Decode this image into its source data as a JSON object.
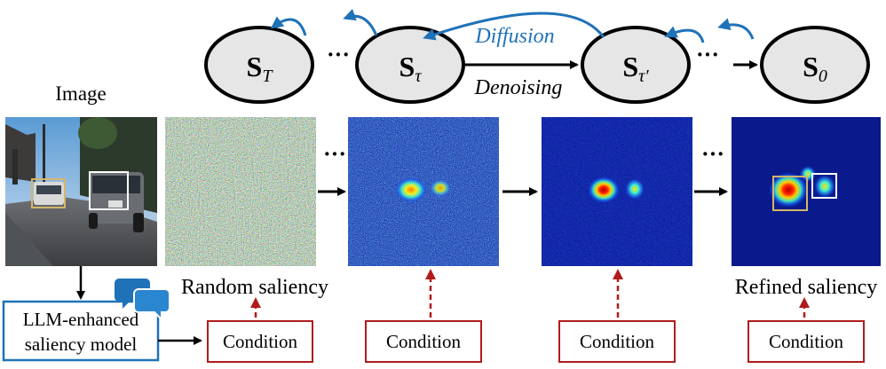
{
  "states": [
    {
      "symbol": "S",
      "sub": "T"
    },
    {
      "symbol": "S",
      "sub": "τ"
    },
    {
      "symbol": "S",
      "sub": "τ′"
    },
    {
      "symbol": "S",
      "sub": "0"
    }
  ],
  "ellipsis": "···",
  "process": {
    "forward": "Diffusion",
    "reverse": "Denoising"
  },
  "image_label": "Image",
  "panel_labels": {
    "random": "Random saliency",
    "refined": "Refined saliency"
  },
  "model_label": {
    "line1": "LLM-enhanced",
    "line2": "saliency model"
  },
  "condition_label": "Condition",
  "colors": {
    "diffusion_blue": "#1f72b8",
    "condition_red": "#b01c1c",
    "node_fill": "#e6e6e6",
    "heat_bg": "#0a1f9c"
  }
}
